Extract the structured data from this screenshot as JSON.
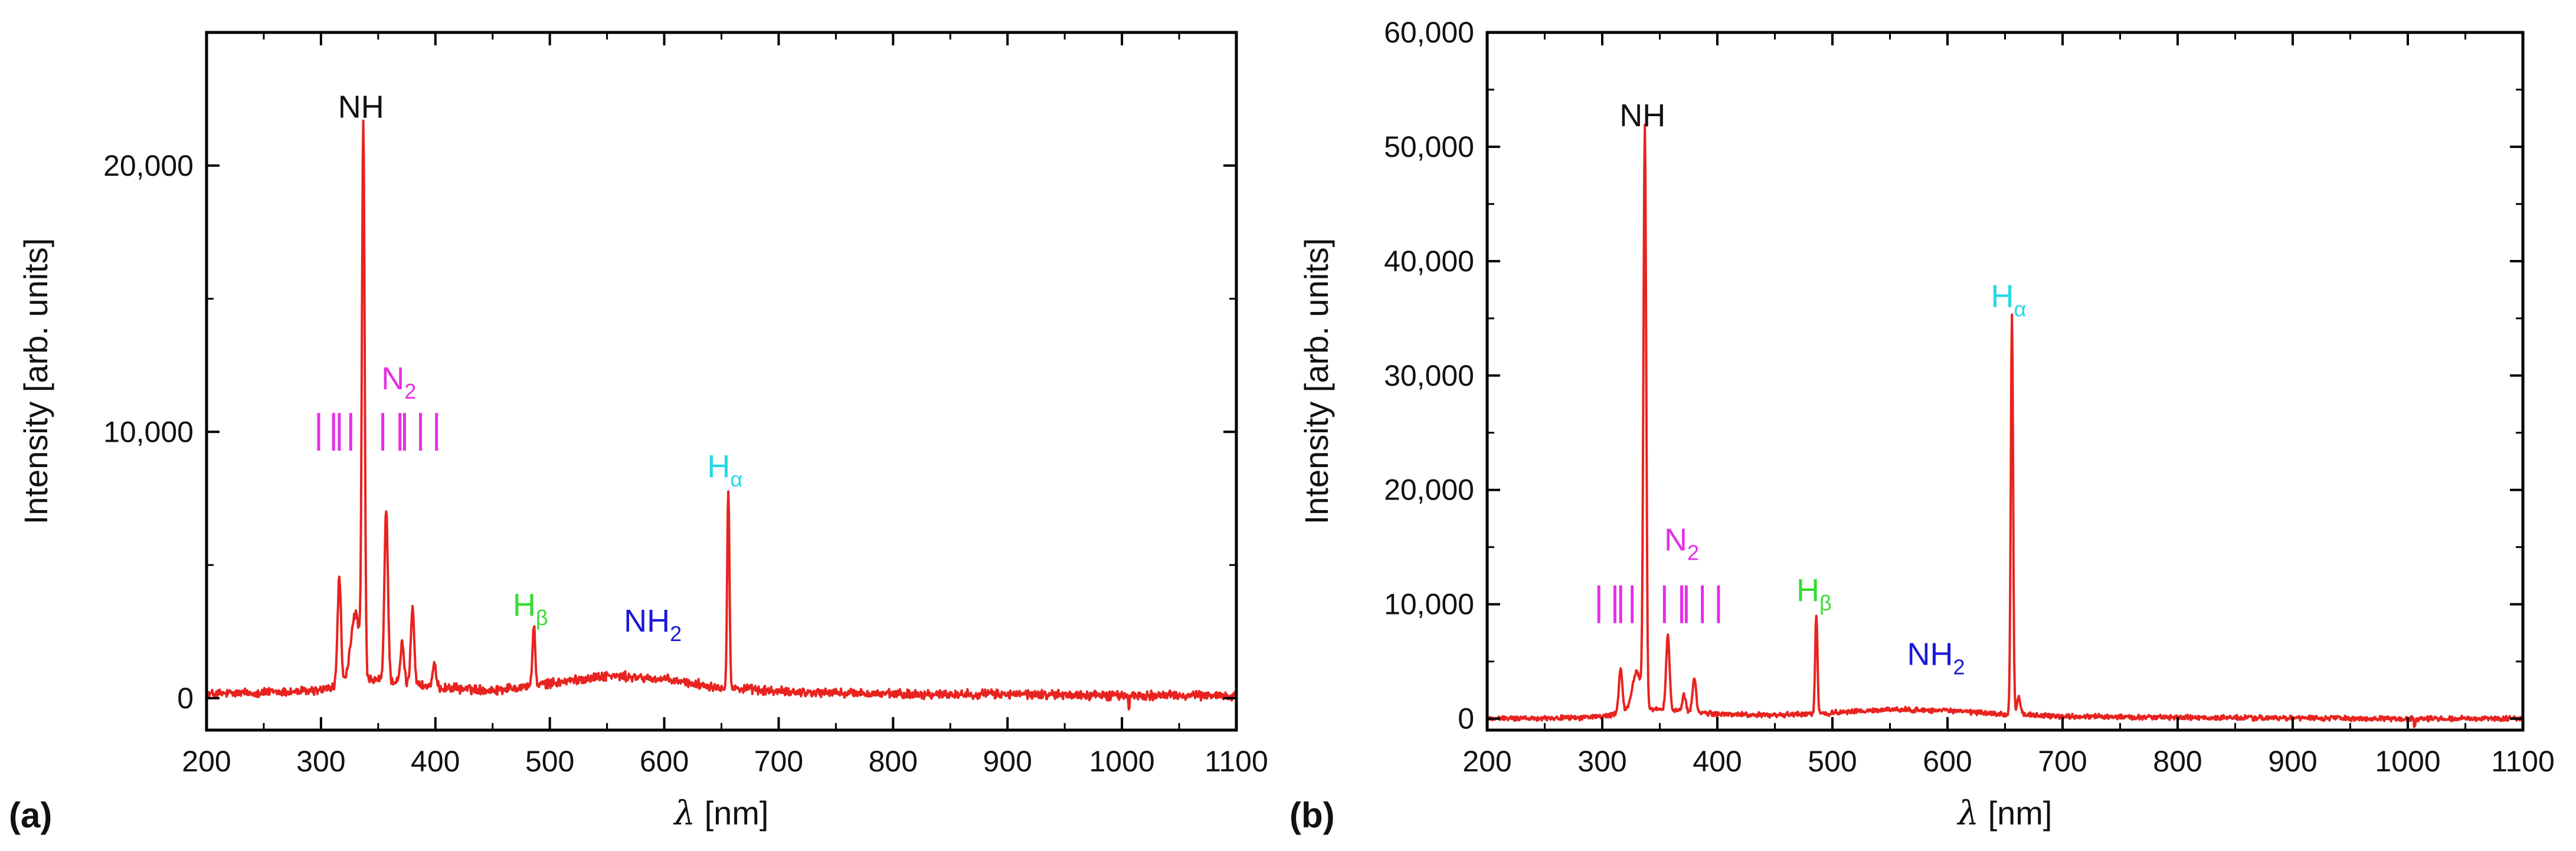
{
  "chart_data": [
    {
      "type": "line",
      "panel_label": "(a)",
      "xlabel_symbol": "λ",
      "xlabel_unit": " [nm]",
      "ylabel": "Intensity [arb. units]",
      "xlim": [
        200,
        1100
      ],
      "ylim": [
        -1200,
        25000
      ],
      "xticks": [
        200,
        300,
        400,
        500,
        600,
        700,
        800,
        900,
        1000,
        1100
      ],
      "xtick_labels": [
        "200",
        "300",
        "400",
        "500",
        "600",
        "700",
        "800",
        "900",
        "1000",
        "1100"
      ],
      "yticks": [
        0,
        10000,
        20000
      ],
      "ytick_labels": [
        "0",
        "10,000",
        "20,000"
      ],
      "line_color": "#e8231f",
      "baseline": {
        "x": [
          200,
          280,
          300,
          320,
          350,
          400,
          450,
          500,
          550,
          600,
          650,
          700,
          800,
          900,
          1000,
          1100
        ],
        "y": [
          150,
          250,
          300,
          500,
          700,
          400,
          300,
          550,
          850,
          700,
          400,
          250,
          150,
          150,
          100,
          100
        ]
      },
      "peaks": [
        {
          "x": 316,
          "y": 4100,
          "w": 1.5
        },
        {
          "x": 330,
          "y": 2600,
          "w": 4
        },
        {
          "x": 337,
          "y": 20500,
          "w": 1.2
        },
        {
          "x": 357,
          "y": 6500,
          "w": 1.5
        },
        {
          "x": 371,
          "y": 1500,
          "w": 1.5
        },
        {
          "x": 380,
          "y": 2900,
          "w": 1.5
        },
        {
          "x": 399,
          "y": 800,
          "w": 1.5
        },
        {
          "x": 486,
          "y": 2200,
          "w": 1.2
        },
        {
          "x": 656,
          "y": 7500,
          "w": 1.0
        }
      ],
      "n2_marker": {
        "lines_x": [
          298,
          311,
          316,
          326,
          354,
          369,
          373,
          387,
          401
        ],
        "y": 10000
      },
      "annotations": [
        {
          "id": "nh",
          "x": 335,
          "y": 21800,
          "main": "NH",
          "sub": "",
          "color": "#111111"
        },
        {
          "id": "n2",
          "x": 368,
          "y": 11600,
          "main": "N",
          "sub": "2",
          "color": "#e62ee6"
        },
        {
          "id": "hb",
          "x": 483,
          "y": 3100,
          "main": "H",
          "sub": "β",
          "color": "#33dd33"
        },
        {
          "id": "nh2",
          "x": 590,
          "y": 2500,
          "main": "NH",
          "sub": "2",
          "color": "#1a1ad6"
        },
        {
          "id": "ha",
          "x": 653,
          "y": 8300,
          "main": "H",
          "sub": "α",
          "color": "#22d8e6"
        }
      ]
    },
    {
      "type": "line",
      "panel_label": "(b)",
      "xlabel_symbol": "λ",
      "xlabel_unit": " [nm]",
      "ylabel": "Intensity [arb. units]",
      "xlim": [
        200,
        1100
      ],
      "ylim": [
        -1000,
        60000
      ],
      "xticks": [
        200,
        300,
        400,
        500,
        600,
        700,
        800,
        900,
        1000,
        1100
      ],
      "xtick_labels": [
        "200",
        "300",
        "400",
        "500",
        "600",
        "700",
        "800",
        "900",
        "1000",
        "1100"
      ],
      "yticks": [
        0,
        10000,
        20000,
        30000,
        40000,
        50000,
        60000
      ],
      "ytick_labels": [
        "0",
        "10,000",
        "20,000",
        "30,000",
        "40,000",
        "50,000",
        "60,000"
      ],
      "line_color": "#e8231f",
      "baseline": {
        "x": [
          200,
          280,
          300,
          320,
          350,
          400,
          450,
          500,
          550,
          600,
          650,
          700,
          800,
          900,
          1000,
          1100
        ],
        "y": [
          0,
          100,
          200,
          500,
          800,
          400,
          300,
          500,
          800,
          700,
          400,
          200,
          100,
          50,
          0,
          0
        ]
      },
      "peaks": [
        {
          "x": 316,
          "y": 4000,
          "w": 1.5
        },
        {
          "x": 330,
          "y": 3500,
          "w": 4
        },
        {
          "x": 337,
          "y": 50500,
          "w": 1.2
        },
        {
          "x": 357,
          "y": 6500,
          "w": 1.5
        },
        {
          "x": 371,
          "y": 1500,
          "w": 1.5
        },
        {
          "x": 380,
          "y": 3000,
          "w": 1.5
        },
        {
          "x": 486,
          "y": 8700,
          "w": 1.0
        },
        {
          "x": 656,
          "y": 35000,
          "w": 1.0
        },
        {
          "x": 662,
          "y": 1500,
          "w": 1.5
        }
      ],
      "n2_marker": {
        "lines_x": [
          297,
          311,
          316,
          326,
          354,
          369,
          373,
          387,
          401
        ],
        "y": 10000
      },
      "annotations": [
        {
          "id": "nh",
          "x": 335,
          "y": 51800,
          "main": "NH",
          "sub": "",
          "color": "#111111"
        },
        {
          "id": "n2",
          "x": 369,
          "y": 14700,
          "main": "N",
          "sub": "2",
          "color": "#e62ee6"
        },
        {
          "id": "hb",
          "x": 484,
          "y": 10300,
          "main": "H",
          "sub": "β",
          "color": "#33dd33"
        },
        {
          "id": "nh2",
          "x": 590,
          "y": 4700,
          "main": "NH",
          "sub": "2",
          "color": "#1a1ad6"
        },
        {
          "id": "ha",
          "x": 653,
          "y": 36000,
          "main": "H",
          "sub": "α",
          "color": "#22d8e6"
        }
      ]
    }
  ]
}
